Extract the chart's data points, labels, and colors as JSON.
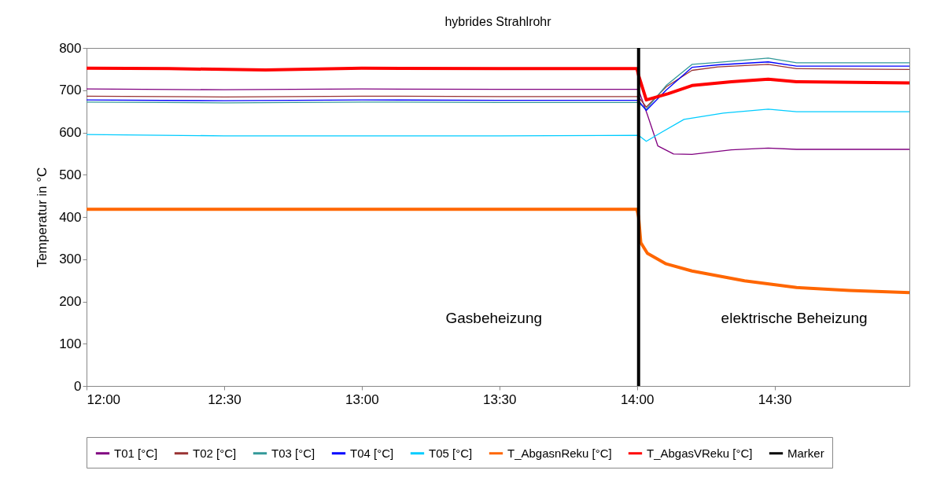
{
  "chart_data": {
    "type": "line",
    "title": "hybrides Strahlrohr",
    "ylabel": "Temperatur in °C",
    "xlim": [
      12,
      14.99
    ],
    "xticks": [
      {
        "value": 12,
        "label": "12:00"
      },
      {
        "value": 12.5,
        "label": "12:30"
      },
      {
        "value": 13,
        "label": "13:00"
      },
      {
        "value": 13.5,
        "label": "13:30"
      },
      {
        "value": 14,
        "label": "14:00"
      },
      {
        "value": 14.5,
        "label": "14:30"
      }
    ],
    "ylim": [
      0,
      800
    ],
    "yticks": [
      0,
      100,
      200,
      300,
      400,
      500,
      600,
      700,
      800
    ],
    "grid": false,
    "legend": "bottom",
    "line_style": "solid",
    "marker": "none",
    "annotations": [
      "Gasbeheizung",
      "elektrische Beheizung"
    ],
    "series": [
      {
        "name": "T01 [°C]",
        "color": "#800080",
        "x": [
          12,
          12.5,
          13,
          13.5,
          14,
          14.006,
          14.038,
          14.076,
          14.133,
          14.2,
          14.343,
          14.477,
          14.58,
          14.99
        ],
        "values": [
          703,
          701,
          703,
          702,
          702,
          701,
          642,
          568,
          549,
          548,
          559,
          563,
          560,
          560
        ]
      },
      {
        "name": "T02 [°C]",
        "color": "#993333",
        "x": [
          12,
          12.5,
          13,
          13.5,
          14,
          14.006,
          14.034,
          14.106,
          14.2,
          14.294,
          14.477,
          14.58,
          14.99
        ],
        "values": [
          686,
          684,
          686,
          685,
          685,
          684,
          660,
          708,
          747,
          755,
          761,
          751,
          749
        ]
      },
      {
        "name": "T03 [°C]",
        "color": "#339999",
        "x": [
          12,
          12.5,
          13,
          13.5,
          14,
          14.006,
          14.034,
          14.106,
          14.2,
          14.294,
          14.477,
          14.58,
          14.99
        ],
        "values": [
          672,
          670,
          672,
          671,
          671,
          670,
          655,
          711,
          761,
          766,
          776,
          765,
          765
        ]
      },
      {
        "name": "T04 [°C]",
        "color": "#0000ff",
        "x": [
          12,
          12.5,
          13,
          13.5,
          14,
          14.006,
          14.034,
          14.106,
          14.2,
          14.294,
          14.477,
          14.58,
          14.99
        ],
        "values": [
          677,
          675,
          677,
          676,
          676,
          675,
          652,
          700,
          754,
          760,
          767,
          757,
          757
        ]
      },
      {
        "name": "T05 [°C]",
        "color": "#00ccff",
        "x": [
          12,
          12.5,
          13,
          13.5,
          14,
          14.006,
          14.034,
          14.086,
          14.171,
          14.314,
          14.477,
          14.58,
          14.99
        ],
        "values": [
          595,
          592,
          592,
          592,
          593,
          593,
          579,
          599,
          631,
          646,
          655,
          649,
          649
        ]
      },
      {
        "name": "T_AbgasnReku [°C]",
        "color": "#ff6600",
        "x": [
          12,
          12.5,
          13,
          13.5,
          14,
          14.006,
          14.014,
          14.038,
          14.106,
          14.2,
          14.391,
          14.58,
          14.771,
          14.99
        ],
        "values": [
          418,
          418,
          418,
          418,
          418,
          400,
          339,
          314,
          289,
          272,
          249,
          233,
          226,
          221
        ]
      },
      {
        "name": "T_AbgasVReku [°C]",
        "color": "#ff0000",
        "x": [
          12,
          12.3,
          12.65,
          13,
          13.5,
          14,
          14.006,
          14.034,
          14.114,
          14.2,
          14.343,
          14.477,
          14.58,
          14.99
        ],
        "values": [
          752,
          751,
          748,
          752,
          751,
          751,
          735,
          677,
          692,
          711,
          720,
          726,
          720,
          717
        ]
      }
    ],
    "ref_lines": [
      {
        "axis": "x",
        "value": 14.006,
        "label": "Marker",
        "color": "#000000",
        "line_style": "solid"
      }
    ]
  }
}
